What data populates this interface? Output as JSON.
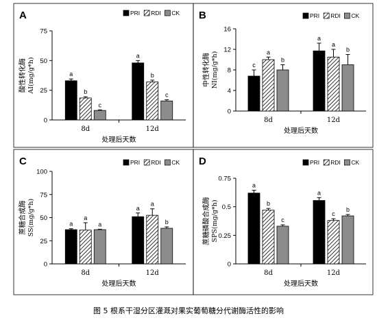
{
  "caption": "图 5 根系干湿分区灌溉对果实葡萄糖分代谢酶活性的影响",
  "legend": [
    "PRI",
    "RDI",
    "CK"
  ],
  "series_styles": [
    {
      "fill": "#000000",
      "pattern": "solid"
    },
    {
      "fill": "#ffffff",
      "pattern": "hatch"
    },
    {
      "fill": "#8c8c8c",
      "pattern": "solid"
    }
  ],
  "chart_data": [
    {
      "type": "bar",
      "panel": "A",
      "ylabel_cn": "酸性转化酶",
      "ylabel_en": "AI(mg/g*h)",
      "xlabel": "处理后天数",
      "categories": [
        "8d",
        "12d"
      ],
      "ylim": [
        0,
        75
      ],
      "yticks": [
        "0",
        "25",
        "50",
        "75"
      ],
      "ytick_values": [
        0,
        25,
        50,
        75
      ],
      "series": [
        {
          "name": "PRI",
          "values": [
            33,
            48
          ],
          "errors": [
            1.5,
            2
          ],
          "letters": [
            "a",
            "a"
          ]
        },
        {
          "name": "RDI",
          "values": [
            18.5,
            32
          ],
          "errors": [
            1,
            1.5
          ],
          "letters": [
            "b",
            "b"
          ]
        },
        {
          "name": "CK",
          "values": [
            8,
            16
          ],
          "errors": [
            0.5,
            1
          ],
          "letters": [
            "c",
            "c"
          ]
        }
      ]
    },
    {
      "type": "bar",
      "panel": "B",
      "ylabel_cn": "中性转化酶",
      "ylabel_en": "NI(mg/g*h)",
      "xlabel": "处理后天数",
      "categories": [
        "8d",
        "12d"
      ],
      "ylim": [
        0,
        16
      ],
      "yticks": [
        "0",
        "4",
        "8",
        "12",
        "16"
      ],
      "ytick_values": [
        0,
        4,
        8,
        12,
        16
      ],
      "series": [
        {
          "name": "PRI",
          "values": [
            6.8,
            11.7
          ],
          "errors": [
            1.2,
            1.5
          ],
          "letters": [
            "c",
            "a"
          ]
        },
        {
          "name": "RDI",
          "values": [
            10,
            10.5
          ],
          "errors": [
            0.5,
            1.5
          ],
          "letters": [
            "a",
            "a"
          ]
        },
        {
          "name": "CK",
          "values": [
            8,
            9
          ],
          "errors": [
            1,
            2
          ],
          "letters": [
            "b",
            "b"
          ]
        }
      ]
    },
    {
      "type": "bar",
      "panel": "C",
      "ylabel_cn": "蔗糖合成酶",
      "ylabel_en": "SS(mg/g*h)",
      "xlabel": "处理后天数",
      "categories": [
        "8d",
        "12d"
      ],
      "ylim": [
        0,
        100
      ],
      "yticks": [
        "0",
        "25",
        "50",
        "75",
        "100"
      ],
      "ytick_values": [
        0,
        25,
        50,
        75,
        100
      ],
      "series": [
        {
          "name": "PRI",
          "values": [
            37,
            51
          ],
          "errors": [
            1,
            4
          ],
          "letters": [
            "a",
            "a"
          ]
        },
        {
          "name": "RDI",
          "values": [
            36.5,
            52.5
          ],
          "errors": [
            8,
            7
          ],
          "letters": [
            "a",
            "a"
          ]
        },
        {
          "name": "CK",
          "values": [
            37,
            38.5
          ],
          "errors": [
            0.5,
            1.5
          ],
          "letters": [
            "a",
            "b"
          ]
        }
      ]
    },
    {
      "type": "bar",
      "panel": "D",
      "ylabel_cn": "蔗糖磷酸合成酶",
      "ylabel_en": "SPS(mg/g*h)",
      "xlabel": "处理后天数",
      "categories": [
        "8d",
        "12d"
      ],
      "ylim": [
        0,
        0.75
      ],
      "yticks": [
        "0",
        "0.25",
        "0.5",
        "0.75"
      ],
      "ytick_values": [
        0,
        0.25,
        0.5,
        0.75
      ],
      "series": [
        {
          "name": "PRI",
          "values": [
            0.62,
            0.555
          ],
          "errors": [
            0.025,
            0.025
          ],
          "letters": [
            "a",
            "a"
          ]
        },
        {
          "name": "RDI",
          "values": [
            0.47,
            0.38
          ],
          "errors": [
            0.015,
            0.015
          ],
          "letters": [
            "b",
            "c"
          ]
        },
        {
          "name": "CK",
          "values": [
            0.33,
            0.42
          ],
          "errors": [
            0.012,
            0.012
          ],
          "letters": [
            "c",
            "b"
          ]
        }
      ]
    }
  ]
}
